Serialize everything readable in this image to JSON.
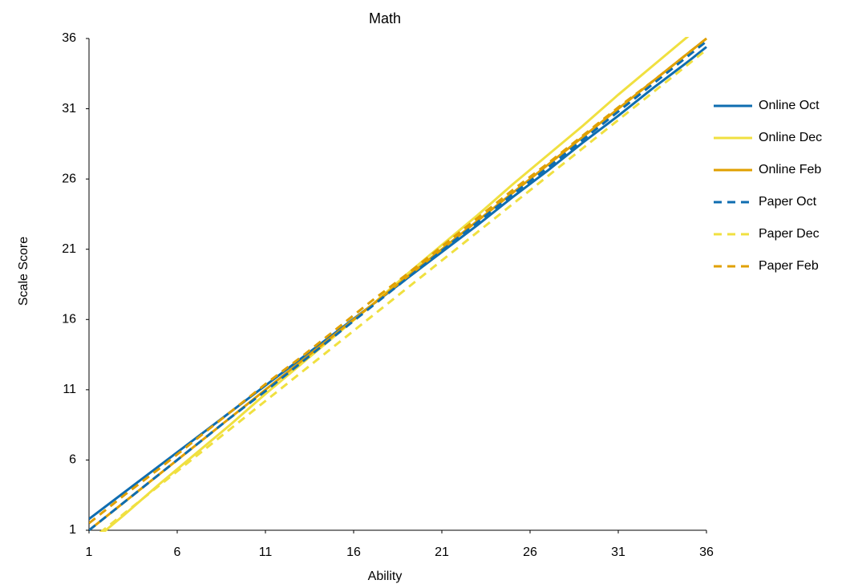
{
  "chart_data": {
    "type": "line",
    "title": "Math",
    "x_label": "Ability",
    "y_label": "Scale Score",
    "x": [
      1,
      3,
      5,
      7,
      9,
      11,
      13,
      15,
      17,
      19,
      21,
      23,
      25,
      27,
      29,
      31,
      33,
      35,
      36
    ],
    "xlim": [
      1,
      36
    ],
    "xticks": [
      1,
      6,
      11,
      16,
      21,
      26,
      31,
      36
    ],
    "ylim": [
      1,
      36
    ],
    "yticks": [
      1,
      6,
      11,
      16,
      21,
      26,
      31,
      36
    ],
    "grid": false,
    "legend": "right",
    "series": [
      {
        "name": "Online Oct",
        "color": "#0f6db0",
        "dashed": false,
        "values": [
          1.8,
          3.7,
          5.6,
          7.5,
          9.4,
          11.3,
          13.2,
          15.1,
          17.0,
          18.9,
          20.8,
          22.7,
          24.7,
          26.6,
          28.6,
          30.5,
          32.5,
          34.4,
          35.4
        ]
      },
      {
        "name": "Online Dec",
        "color": "#f0e040",
        "dashed": false,
        "values": [
          0,
          2.1,
          4.3,
          6.4,
          8.5,
          10.7,
          12.8,
          14.9,
          17.0,
          19.2,
          21.3,
          23.4,
          25.6,
          27.7,
          29.8,
          32.0,
          34.1,
          36.2,
          37.3
        ]
      },
      {
        "name": "Online Feb",
        "color": "#e0a000",
        "dashed": false,
        "values": [
          1,
          3,
          5,
          7,
          9,
          11,
          13,
          15,
          17,
          19,
          21,
          23,
          25,
          27,
          29,
          31,
          33,
          35,
          36
        ]
      },
      {
        "name": "Paper Oct",
        "color": "#0f6db0",
        "dashed": true,
        "values": [
          1,
          3.0,
          5.0,
          7.0,
          9.0,
          10.9,
          12.9,
          14.9,
          16.9,
          18.9,
          20.9,
          22.9,
          24.9,
          26.8,
          28.8,
          30.8,
          32.8,
          34.8,
          35.8
        ]
      },
      {
        "name": "Paper Dec",
        "color": "#f0e040",
        "dashed": true,
        "values": [
          0.2,
          2.2,
          4.2,
          6.2,
          8.2,
          10.2,
          12.2,
          14.2,
          16.2,
          18.2,
          20.2,
          22.2,
          24.2,
          26.2,
          28.2,
          30.2,
          32.2,
          34.2,
          35.2
        ]
      },
      {
        "name": "Paper Feb",
        "color": "#e0a000",
        "dashed": true,
        "values": [
          1.5,
          3.5,
          5.4,
          7.4,
          9.4,
          11.4,
          13.3,
          15.3,
          17.3,
          19.2,
          21.2,
          23.2,
          25.2,
          27.1,
          29.1,
          31.1,
          33.0,
          35.0,
          36.0
        ]
      }
    ]
  }
}
